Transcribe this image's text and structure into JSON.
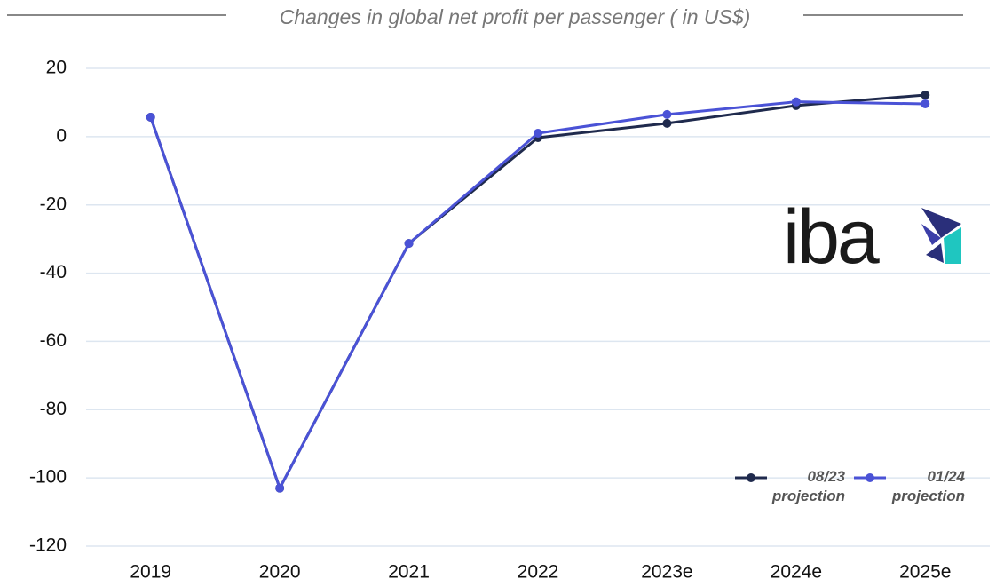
{
  "chart_data": {
    "type": "line",
    "title": "Changes in global net profit per passenger ( in US$)",
    "logo": "iba",
    "categories": [
      "2019",
      "2020",
      "2021",
      "2022",
      "2023e",
      "2024e",
      "2025e"
    ],
    "series": [
      {
        "name": "08/23 projection",
        "color": "#1f2a4d",
        "values": [
          5.7,
          -103,
          -31.3,
          -0.3,
          3.9,
          9.1,
          12.2
        ]
      },
      {
        "name": "01/24 projection",
        "color": "#4a52d6",
        "values": [
          5.7,
          -103,
          -31.3,
          1,
          6.5,
          10.2,
          9.6
        ]
      }
    ],
    "ylim": [
      -120,
      20
    ],
    "yticks": [
      -120,
      -100,
      -80,
      -60,
      -40,
      -20,
      0,
      20
    ],
    "grid": true,
    "legend": "lower right"
  }
}
